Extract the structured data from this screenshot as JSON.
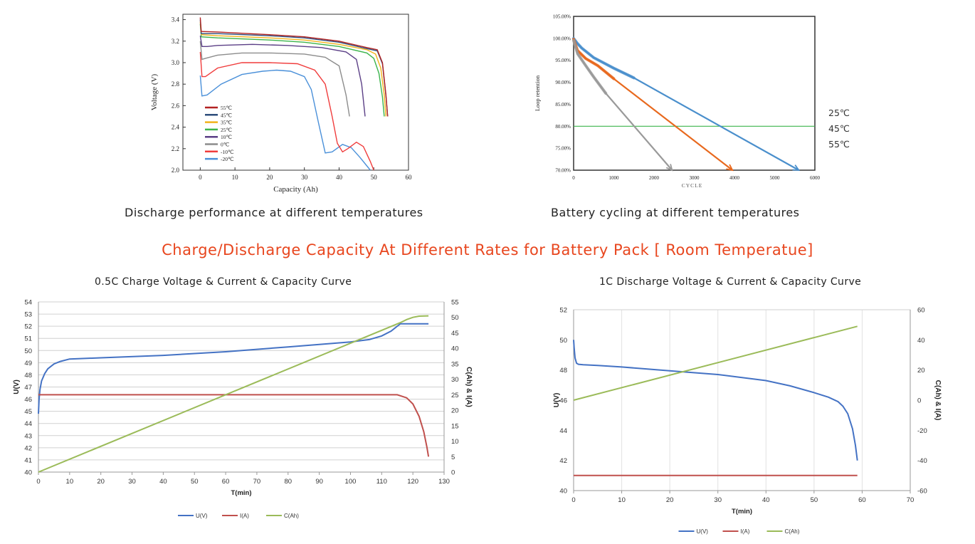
{
  "captions": {
    "discharge_temps": "Discharge performance at different temperatures",
    "cycling_temps": "Battery cycling at different temperatures"
  },
  "banner": "Charge/Discharge Capacity At Different Rates for Battery Pack [ Room Temperatue]",
  "chart_data": [
    {
      "type": "line",
      "title": "",
      "xlabel": "Capacity (Ah)",
      "ylabel": "Voltage (V)",
      "xlim": [
        -5,
        60
      ],
      "ylim": [
        2.0,
        3.45
      ],
      "xticks": [
        0,
        10,
        20,
        30,
        40,
        50,
        60
      ],
      "yticks": [
        2.0,
        2.2,
        2.4,
        2.6,
        2.8,
        3.0,
        3.2,
        3.4
      ],
      "legend_position": "lower-left",
      "series": [
        {
          "name": "55℃",
          "color": "#b22222",
          "x": [
            0,
            0.3,
            5,
            20,
            30,
            40,
            48,
            51,
            52.5,
            53.5,
            54
          ],
          "y": [
            3.42,
            3.29,
            3.285,
            3.26,
            3.24,
            3.2,
            3.14,
            3.12,
            3.0,
            2.7,
            2.5
          ]
        },
        {
          "name": "45℃",
          "color": "#2e4d7b",
          "x": [
            0,
            0.3,
            5,
            20,
            30,
            40,
            48,
            51,
            52.5,
            53.5,
            54
          ],
          "y": [
            3.4,
            3.27,
            3.27,
            3.25,
            3.23,
            3.19,
            3.13,
            3.11,
            2.99,
            2.69,
            2.5
          ]
        },
        {
          "name": "35℃",
          "color": "#f2b21b",
          "x": [
            0,
            0.3,
            5,
            20,
            30,
            40,
            48,
            50.5,
            52,
            53,
            53.5
          ],
          "y": [
            3.38,
            3.26,
            3.25,
            3.23,
            3.21,
            3.17,
            3.12,
            3.08,
            2.95,
            2.7,
            2.5
          ]
        },
        {
          "name": "25℃",
          "color": "#3cb44b",
          "x": [
            0,
            0.3,
            5,
            20,
            30,
            40,
            48,
            50,
            51.5,
            52.5,
            53
          ],
          "y": [
            3.36,
            3.24,
            3.23,
            3.21,
            3.19,
            3.15,
            3.09,
            3.04,
            2.9,
            2.68,
            2.5
          ]
        },
        {
          "name": "10℃",
          "color": "#5b3f86",
          "x": [
            0,
            0.5,
            2,
            5,
            15,
            25,
            35,
            42,
            45,
            46.5,
            47.5
          ],
          "y": [
            3.25,
            3.15,
            3.15,
            3.16,
            3.17,
            3.16,
            3.14,
            3.1,
            3.03,
            2.8,
            2.5
          ]
        },
        {
          "name": "0℃",
          "color": "#8c8c8c",
          "x": [
            0,
            0.5,
            1.5,
            5,
            12,
            20,
            30,
            36,
            40,
            42,
            43
          ],
          "y": [
            3.2,
            3.03,
            3.04,
            3.07,
            3.09,
            3.09,
            3.08,
            3.05,
            2.97,
            2.7,
            2.5
          ]
        },
        {
          "name": "-10℃",
          "color": "#f03c3c",
          "x": [
            0,
            0.5,
            1.5,
            5,
            12,
            20,
            28,
            33,
            36,
            38,
            39.5,
            41,
            42.5,
            45,
            47,
            49,
            50
          ],
          "y": [
            3.1,
            2.87,
            2.87,
            2.95,
            3.0,
            3.0,
            2.99,
            2.93,
            2.8,
            2.5,
            2.25,
            2.17,
            2.2,
            2.26,
            2.22,
            2.08,
            2.0
          ]
        },
        {
          "name": "-20℃",
          "color": "#4a90d9",
          "x": [
            0,
            0.5,
            2,
            6,
            12,
            18,
            22,
            26,
            30,
            32,
            34,
            36,
            38,
            41,
            43.5,
            46,
            48,
            49
          ],
          "y": [
            2.88,
            2.69,
            2.7,
            2.8,
            2.89,
            2.92,
            2.93,
            2.92,
            2.87,
            2.75,
            2.45,
            2.16,
            2.17,
            2.24,
            2.21,
            2.12,
            2.04,
            2.0
          ]
        }
      ]
    },
    {
      "type": "line",
      "title": "",
      "xlabel": "CYCLE",
      "ylabel": "Loop retention",
      "xlim": [
        0,
        6000
      ],
      "ylim": [
        70,
        105
      ],
      "xticks": [
        0,
        1000,
        2000,
        3000,
        4000,
        5000,
        6000
      ],
      "yticks": [
        "70.00%",
        "75.00%",
        "80.00%",
        "85.00%",
        "90.00%",
        "95.00%",
        "100.00%",
        "105.00%"
      ],
      "ytick_values": [
        70,
        75,
        80,
        85,
        90,
        95,
        100,
        105
      ],
      "legend_position": "outside-right",
      "legend": [
        "25℃",
        "45℃",
        "55℃"
      ],
      "series": [
        {
          "name": "25℃",
          "color": "#4a8fcc",
          "x": [
            0,
            100,
            200,
            500,
            1000,
            1500,
            5600
          ],
          "y": [
            100.0,
            98.8,
            97.8,
            95.6,
            93.2,
            91.0,
            70.0
          ]
        },
        {
          "name": "45℃",
          "color": "#e8691e",
          "x": [
            0,
            100,
            300,
            600,
            1000,
            3950
          ],
          "y": [
            99.8,
            97.2,
            95.4,
            93.8,
            90.8,
            70.0
          ]
        },
        {
          "name": "55℃",
          "color": "#9a9a9a",
          "x": [
            0,
            100,
            300,
            500,
            800,
            2450
          ],
          "y": [
            99.5,
            96.5,
            93.8,
            91.2,
            87.5,
            70.0
          ]
        },
        {
          "name": "80% line",
          "color": "#3cb44b",
          "x": [
            0,
            6000
          ],
          "y": [
            80.0,
            80.0
          ]
        }
      ]
    },
    {
      "type": "line",
      "title": "0.5C Charge Voltage & Current & Capacity Curve",
      "xlabel": "T(min)",
      "ylabel": "U(V)",
      "y2label": "C(Ah) & I(A)",
      "xlim": [
        0,
        130
      ],
      "ylim": [
        40,
        54
      ],
      "y2lim": [
        0,
        55
      ],
      "xticks": [
        0,
        10,
        20,
        30,
        40,
        50,
        60,
        70,
        80,
        90,
        100,
        110,
        120,
        130
      ],
      "yticks": [
        40,
        41,
        42,
        43,
        44,
        45,
        46,
        47,
        48,
        49,
        50,
        51,
        52,
        53,
        54
      ],
      "y2ticks": [
        0,
        5,
        10,
        15,
        20,
        25,
        30,
        35,
        40,
        45,
        50,
        55
      ],
      "legend_position": "bottom",
      "legend": [
        "U(V)",
        "I(A)",
        "C(Ah)"
      ],
      "series": [
        {
          "name": "U(V)",
          "axis": "left",
          "color": "#4472c4",
          "x": [
            0,
            0.2,
            0.5,
            1,
            2,
            3,
            5,
            7,
            10,
            20,
            40,
            60,
            80,
            100,
            106,
            110,
            113,
            115,
            116,
            125
          ],
          "y": [
            44.8,
            46.0,
            46.8,
            47.5,
            48.1,
            48.5,
            48.9,
            49.1,
            49.3,
            49.4,
            49.6,
            49.9,
            50.3,
            50.7,
            50.9,
            51.2,
            51.6,
            52.0,
            52.2,
            52.2
          ]
        },
        {
          "name": "I(A)",
          "axis": "right",
          "color": "#c0504d",
          "x": [
            0,
            115,
            118,
            120,
            122,
            123.5,
            124.5,
            125
          ],
          "y": [
            25,
            25,
            24,
            22,
            18,
            13,
            8,
            5
          ]
        },
        {
          "name": "C(Ah)",
          "axis": "right",
          "color": "#9bbb59",
          "x": [
            0,
            116,
            118,
            120,
            122,
            125
          ],
          "y": [
            0,
            48.3,
            49.3,
            50.0,
            50.4,
            50.5
          ]
        }
      ]
    },
    {
      "type": "line",
      "title": "1C Discharge Voltage & Current & Capacity Curve",
      "xlabel": "T(min)",
      "ylabel": "U(V)",
      "y2label": "C(Ah) & I(A)",
      "xlim": [
        0,
        70
      ],
      "ylim": [
        40,
        52
      ],
      "y2lim": [
        -60,
        60
      ],
      "xticks": [
        0,
        10,
        20,
        30,
        40,
        50,
        60,
        70
      ],
      "yticks": [
        40,
        42,
        44,
        46,
        48,
        50,
        52
      ],
      "y2ticks": [
        -60,
        -40,
        -20,
        0,
        20,
        40,
        60
      ],
      "legend_position": "bottom",
      "legend": [
        "U(V)",
        "I(A)",
        "C(Ah)"
      ],
      "series": [
        {
          "name": "U(V)",
          "axis": "left",
          "color": "#4472c4",
          "x": [
            0,
            0.1,
            0.3,
            0.6,
            1,
            2,
            5,
            10,
            20,
            30,
            40,
            45,
            50,
            53,
            55,
            56,
            57,
            58,
            58.6,
            59
          ],
          "y": [
            50.0,
            49.5,
            48.8,
            48.45,
            48.38,
            48.35,
            48.3,
            48.2,
            47.95,
            47.7,
            47.3,
            46.95,
            46.5,
            46.2,
            45.9,
            45.6,
            45.1,
            44.1,
            43.0,
            42.0
          ]
        },
        {
          "name": "I(A)",
          "axis": "right",
          "color": "#c0504d",
          "x": [
            0,
            59
          ],
          "y": [
            -50,
            -50
          ]
        },
        {
          "name": "C(Ah)",
          "axis": "right",
          "color": "#9bbb59",
          "x": [
            0,
            59
          ],
          "y": [
            0,
            49
          ]
        }
      ]
    }
  ]
}
